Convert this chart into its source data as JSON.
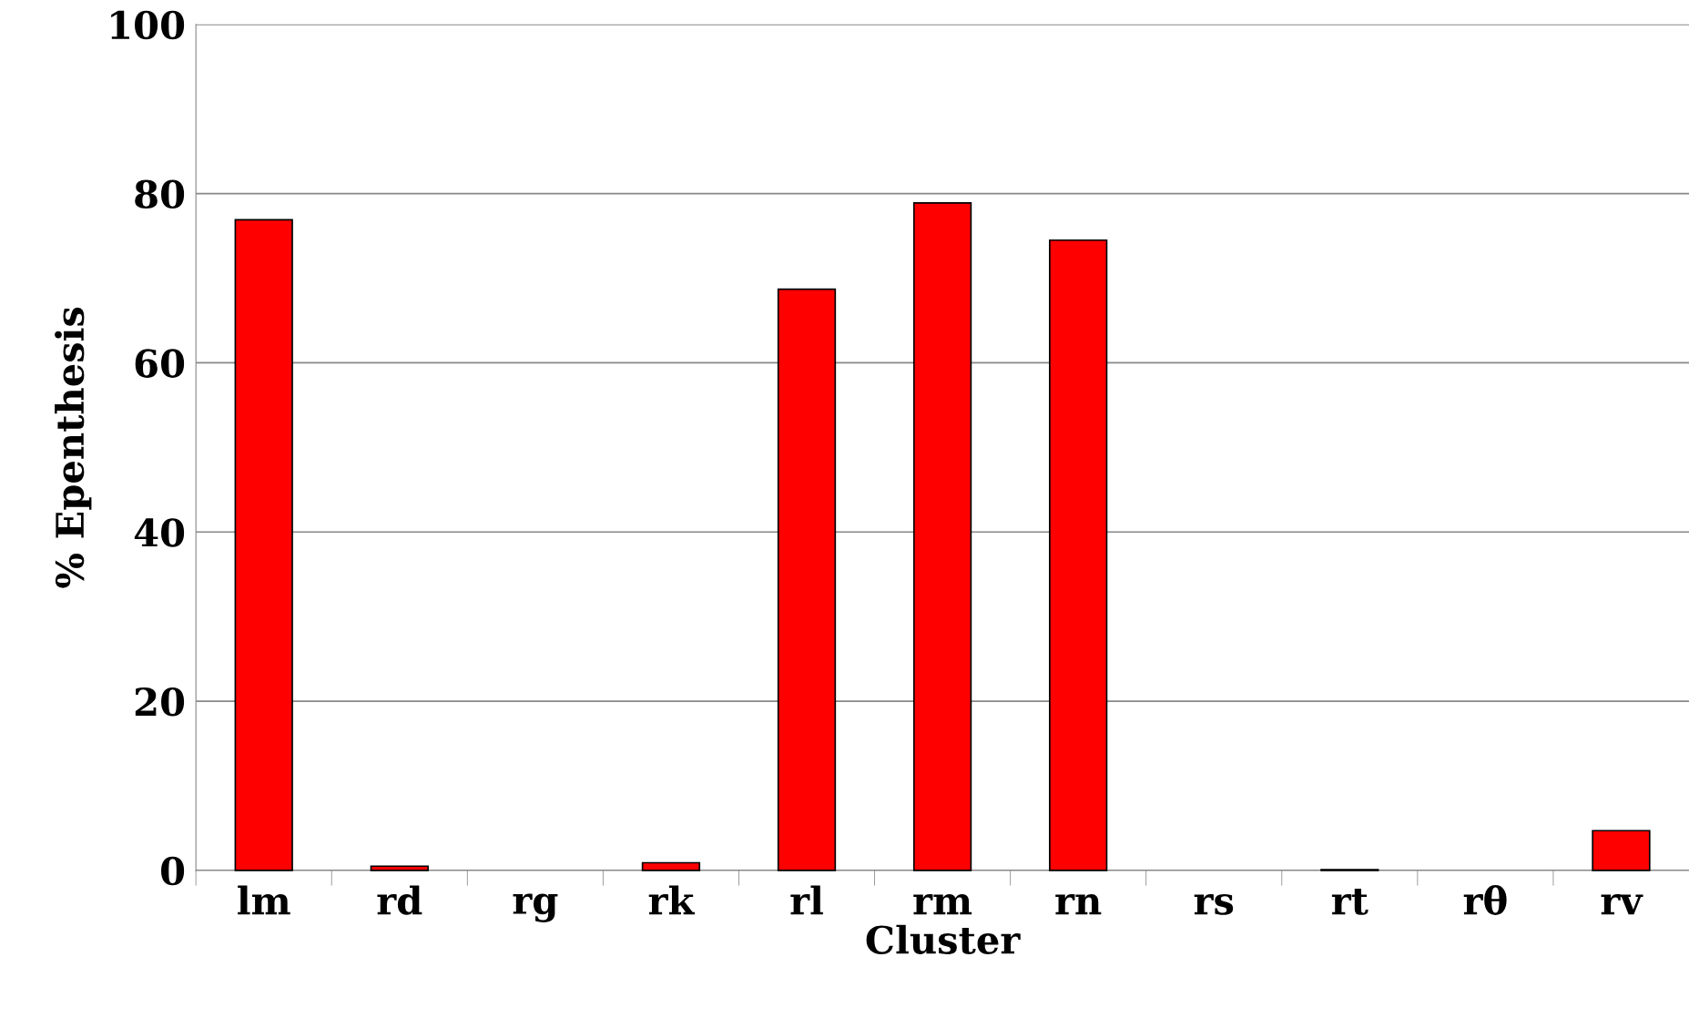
{
  "chart_data": {
    "type": "bar",
    "xlabel": "Cluster",
    "ylabel": "% Epenthesis",
    "categories": [
      "lm",
      "rd",
      "rg",
      "rk",
      "rl",
      "rm",
      "rn",
      "rs",
      "rt",
      "rθ",
      "rv"
    ],
    "values": [
      76.9,
      0.5,
      0,
      0.9,
      68.7,
      78.9,
      74.5,
      0,
      0.1,
      0,
      4.7
    ],
    "color": "#ff0000",
    "ylim": [
      0,
      100
    ],
    "yticks": [
      0,
      20,
      40,
      60,
      80,
      100
    ],
    "grid": "y",
    "legend": false
  }
}
